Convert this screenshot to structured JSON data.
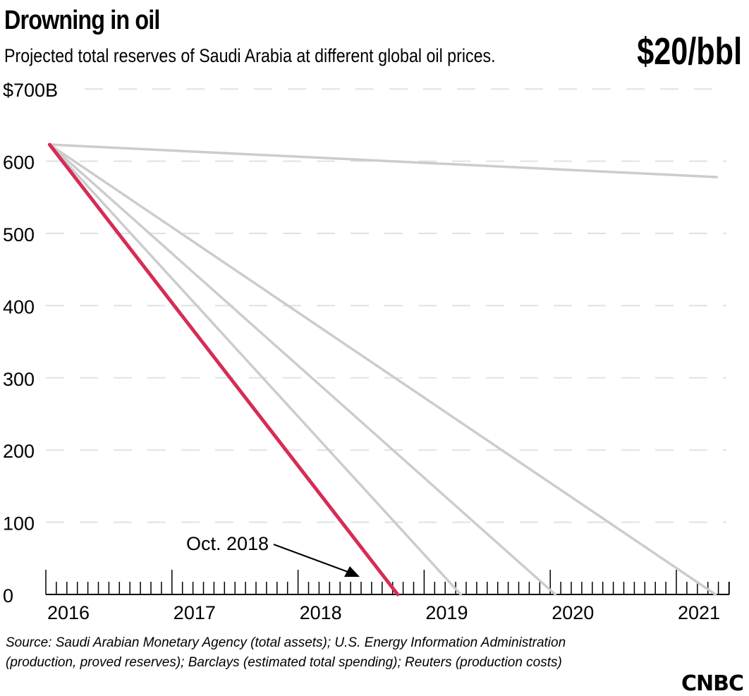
{
  "chart_data": {
    "type": "line",
    "title": "Drowning in oil",
    "subtitle": "Projected total reserves of Saudi Arabia at different global oil prices.",
    "badge": "$20/bbl",
    "ylim": [
      0,
      700
    ],
    "yticks": [
      {
        "v": 700,
        "label": "$700B"
      },
      {
        "v": 600,
        "label": "600"
      },
      {
        "v": 500,
        "label": "500"
      },
      {
        "v": 400,
        "label": "400"
      },
      {
        "v": 300,
        "label": "300"
      },
      {
        "v": 200,
        "label": "200"
      },
      {
        "v": 100,
        "label": "100"
      },
      {
        "v": 0,
        "label": "0"
      }
    ],
    "xlim": [
      2016,
      2021.42
    ],
    "xticks": [
      "2016",
      "2017",
      "2018",
      "2019",
      "2020",
      "2021"
    ],
    "grid": "dashed horizontal",
    "series": [
      {
        "color": "#cccccc",
        "highlight": false,
        "x": [
          2016.03,
          2021.32
        ],
        "y": [
          623,
          578
        ]
      },
      {
        "color": "#cccccc",
        "highlight": false,
        "x": [
          2016.03,
          2021.31
        ],
        "y": [
          623,
          0
        ]
      },
      {
        "color": "#cccccc",
        "highlight": false,
        "x": [
          2016.03,
          2020.04
        ],
        "y": [
          623,
          0
        ]
      },
      {
        "color": "#cccccc",
        "highlight": false,
        "x": [
          2016.03,
          2019.29
        ],
        "y": [
          623,
          0
        ]
      },
      {
        "color": "#d62c55",
        "highlight": true,
        "x": [
          2016.03,
          2018.79
        ],
        "y": [
          623,
          0
        ]
      }
    ],
    "annotation": {
      "text": "Oct. 2018",
      "x": 2018.79,
      "y": 0
    }
  },
  "source": "Source: Saudi Arabian Monetary Agency (total assets); U.S. Energy Information Administration (production, proved reserves); Barclays (estimated total spending); Reuters (production costs)",
  "logo": "CNBC"
}
